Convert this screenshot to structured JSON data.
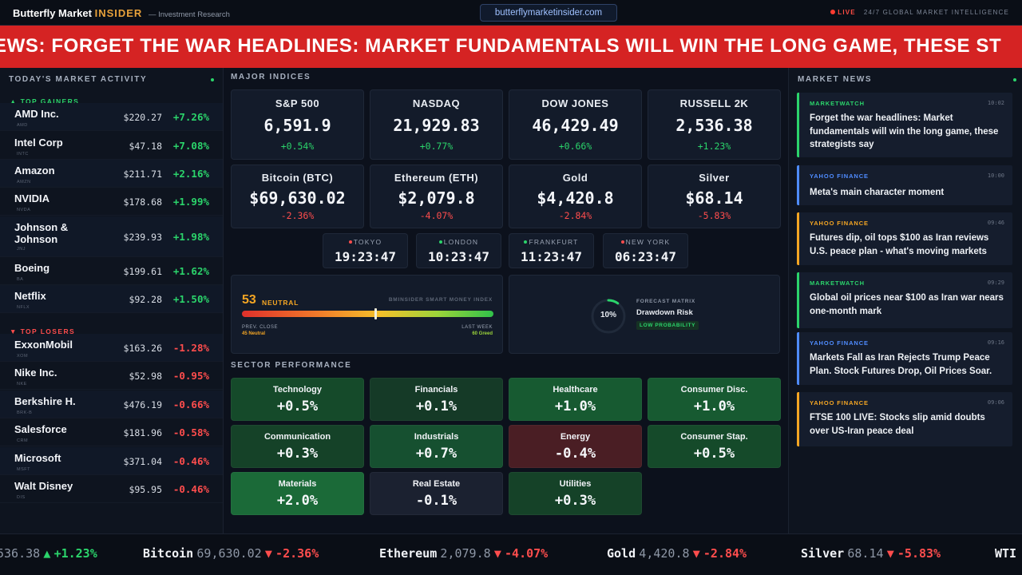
{
  "header": {
    "brand_main": "Butterfly Market",
    "brand_highlight": "INSIDER",
    "brand_sub": "— Investment Research",
    "url": "butterflymarketinsider.com",
    "live_label": "LIVE",
    "tagline": "24/7 GLOBAL MARKET INTELLIGENCE"
  },
  "banner": {
    "text": "EWS: FORGET THE WAR HEADLINES: MARKET FUNDAMENTALS WILL WIN THE LONG GAME, THESE ST"
  },
  "left": {
    "title": "TODAY'S MARKET ACTIVITY",
    "gainers_label": "▲ TOP GAINERS",
    "losers_label": "▼ TOP LOSERS",
    "gainers": [
      {
        "name": "AMD Inc.",
        "ticker": "AMD",
        "price": "$220.27",
        "change": "+7.26%"
      },
      {
        "name": "Intel Corp",
        "ticker": "INTC",
        "price": "$47.18",
        "change": "+7.08%"
      },
      {
        "name": "Amazon",
        "ticker": "AMZN",
        "price": "$211.71",
        "change": "+2.16%"
      },
      {
        "name": "NVIDIA",
        "ticker": "NVDA",
        "price": "$178.68",
        "change": "+1.99%"
      },
      {
        "name": "Johnson & Johnson",
        "ticker": "JNJ",
        "price": "$239.93",
        "change": "+1.98%"
      },
      {
        "name": "Boeing",
        "ticker": "BA",
        "price": "$199.61",
        "change": "+1.62%"
      },
      {
        "name": "Netflix",
        "ticker": "NFLX",
        "price": "$92.28",
        "change": "+1.50%"
      }
    ],
    "losers": [
      {
        "name": "ExxonMobil",
        "ticker": "XOM",
        "price": "$163.26",
        "change": "-1.28%"
      },
      {
        "name": "Nike Inc.",
        "ticker": "NKE",
        "price": "$52.98",
        "change": "-0.95%"
      },
      {
        "name": "Berkshire H.",
        "ticker": "BRK-B",
        "price": "$476.19",
        "change": "-0.66%"
      },
      {
        "name": "Salesforce",
        "ticker": "CRM",
        "price": "$181.96",
        "change": "-0.58%"
      },
      {
        "name": "Microsoft",
        "ticker": "MSFT",
        "price": "$371.04",
        "change": "-0.46%"
      },
      {
        "name": "Walt Disney",
        "ticker": "DIS",
        "price": "$95.95",
        "change": "-0.46%"
      }
    ]
  },
  "indices": {
    "title": "MAJOR INDICES",
    "items": [
      {
        "name": "S&P 500",
        "value": "6,591.9",
        "change": "+0.54%",
        "dir": "up"
      },
      {
        "name": "NASDAQ",
        "value": "21,929.83",
        "change": "+0.77%",
        "dir": "up"
      },
      {
        "name": "DOW JONES",
        "value": "46,429.49",
        "change": "+0.66%",
        "dir": "up"
      },
      {
        "name": "RUSSELL 2K",
        "value": "2,536.38",
        "change": "+1.23%",
        "dir": "up"
      },
      {
        "name": "Bitcoin (BTC)",
        "value": "$69,630.02",
        "change": "-2.36%",
        "dir": "down"
      },
      {
        "name": "Ethereum (ETH)",
        "value": "$2,079.8",
        "change": "-4.07%",
        "dir": "down"
      },
      {
        "name": "Gold",
        "value": "$4,420.8",
        "change": "-2.84%",
        "dir": "down"
      },
      {
        "name": "Silver",
        "value": "$68.14",
        "change": "-5.83%",
        "dir": "down"
      }
    ]
  },
  "clocks": [
    {
      "city": "TOKYO",
      "time": "19:23:47",
      "dot": "#ff4d4d"
    },
    {
      "city": "LONDON",
      "time": "10:23:47",
      "dot": "#2bd46b"
    },
    {
      "city": "FRANKFURT",
      "time": "11:23:47",
      "dot": "#2bd46b"
    },
    {
      "city": "NEW YORK",
      "time": "06:23:47",
      "dot": "#ff4d4d"
    }
  ],
  "smart_money": {
    "score": "53",
    "label": "NEUTRAL",
    "title": "BMINSIDER SMART MONEY INDEX",
    "level": 0.53,
    "prev_close_label": "PREV. CLOSE",
    "prev_close_value": "45 Neutral",
    "last_week_label": "LAST WEEK",
    "last_week_value": "60 Greed"
  },
  "forecast": {
    "label": "FORECAST MATRIX",
    "title": "Drawdown Risk",
    "badge": "LOW PROBABILITY",
    "percent_text": "10%",
    "level": 0.1
  },
  "sectors": {
    "title": "SECTOR PERFORMANCE",
    "items": [
      {
        "name": "Technology",
        "value": "+0.5%",
        "color": "#154a2a"
      },
      {
        "name": "Financials",
        "value": "+0.1%",
        "color": "#153a27"
      },
      {
        "name": "Healthcare",
        "value": "+1.0%",
        "color": "#175a31"
      },
      {
        "name": "Consumer Disc.",
        "value": "+1.0%",
        "color": "#175a31"
      },
      {
        "name": "Communication",
        "value": "+0.3%",
        "color": "#154228"
      },
      {
        "name": "Industrials",
        "value": "+0.7%",
        "color": "#165030"
      },
      {
        "name": "Energy",
        "value": "-0.4%",
        "color": "#4a1e24"
      },
      {
        "name": "Consumer Stap.",
        "value": "+0.5%",
        "color": "#154a2a"
      },
      {
        "name": "Materials",
        "value": "+2.0%",
        "color": "#1b6a38"
      },
      {
        "name": "Real Estate",
        "value": "-0.1%",
        "color": "#1b2130"
      },
      {
        "name": "Utilities",
        "value": "+0.3%",
        "color": "#154228"
      }
    ]
  },
  "news": {
    "title": "MARKET NEWS",
    "items": [
      {
        "source": "MARKETWATCH",
        "time": "10:02",
        "headline": "Forget the war headlines: Market fundamentals will win the long game, these strategists say",
        "color": "#2bd46b"
      },
      {
        "source": "YAHOO FINANCE",
        "time": "10:00",
        "headline": "Meta's main character moment",
        "color": "#4f8cff"
      },
      {
        "source": "YAHOO FINANCE",
        "time": "09:46",
        "headline": "Futures dip, oil tops $100 as Iran reviews U.S. peace plan - what's moving markets",
        "color": "#f5a623"
      },
      {
        "source": "MARKETWATCH",
        "time": "09:29",
        "headline": "Global oil prices near $100 as Iran war nears one-month mark",
        "color": "#2bd46b"
      },
      {
        "source": "YAHOO FINANCE",
        "time": "09:16",
        "headline": "Markets Fall as Iran Rejects Trump Peace Plan. Stock Futures Drop, Oil Prices Soar.",
        "color": "#4f8cff"
      },
      {
        "source": "YAHOO FINANCE",
        "time": "09:06",
        "headline": "FTSE 100 LIVE: Stocks slip amid doubts over US-Iran peace deal",
        "color": "#f5a623"
      }
    ]
  },
  "ticker": {
    "items": [
      {
        "name": "",
        "price": "536.38",
        "arrow": "▲",
        "change": "+1.23%",
        "dir": "up"
      },
      {
        "name": "Bitcoin",
        "price": "69,630.02",
        "arrow": "▼",
        "change": "-2.36%",
        "dir": "down"
      },
      {
        "name": "Ethereum",
        "price": "2,079.8",
        "arrow": "▼",
        "change": "-4.07%",
        "dir": "down"
      },
      {
        "name": "Gold",
        "price": "4,420.8",
        "arrow": "▼",
        "change": "-2.84%",
        "dir": "down"
      },
      {
        "name": "Silver",
        "price": "68.14",
        "arrow": "▼",
        "change": "-5.83%",
        "dir": "down"
      },
      {
        "name": "WTI",
        "price": "",
        "arrow": "",
        "change": "",
        "dir": "up"
      }
    ]
  }
}
